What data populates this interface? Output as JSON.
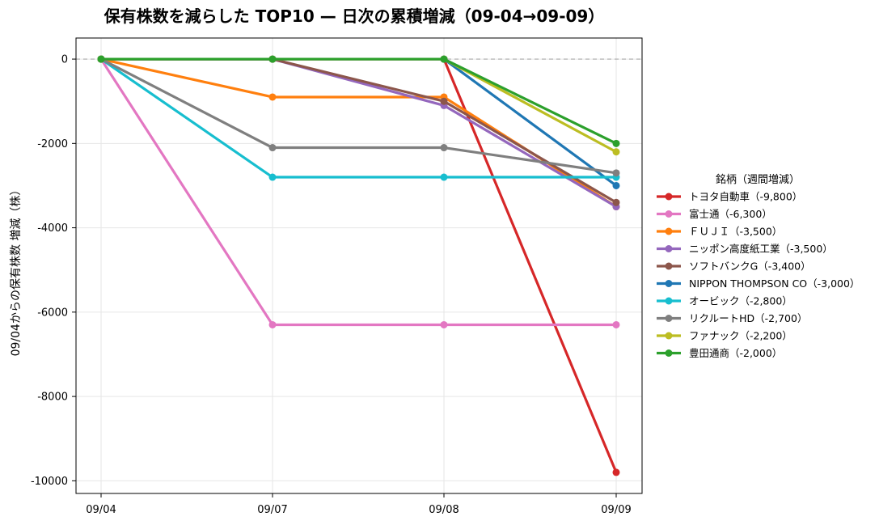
{
  "chart_data": {
    "type": "line",
    "title": "保有株数を減らした TOP10 — 日次の累積増減（09-04→09-09）",
    "xlabel": "",
    "ylabel": "09/04からの保有株数 増減（株）",
    "categories": [
      "09/04",
      "09/07",
      "09/08",
      "09/09"
    ],
    "ylim": [
      -10300,
      500
    ],
    "yticks": [
      0,
      -2000,
      -4000,
      -6000,
      -8000,
      -10000
    ],
    "grid": true,
    "zero_line": true,
    "legend_title": "銘柄（週間増減）",
    "legend_position": "right",
    "series": [
      {
        "name": "トヨタ自動車（-9,800）",
        "color": "#d62728",
        "values": [
          0,
          0,
          0,
          -9800
        ]
      },
      {
        "name": "富士通（-6,300）",
        "color": "#e377c2",
        "values": [
          0,
          -6300,
          -6300,
          -6300
        ]
      },
      {
        "name": "ＦＵＪＩ（-3,500）",
        "color": "#ff7f0e",
        "values": [
          0,
          -900,
          -900,
          -3500
        ]
      },
      {
        "name": "ニッポン高度紙工業（-3,500）",
        "color": "#9467bd",
        "values": [
          0,
          0,
          -1100,
          -3500
        ]
      },
      {
        "name": "ソフトバンクG（-3,400）",
        "color": "#8c564b",
        "values": [
          0,
          0,
          -1000,
          -3400
        ]
      },
      {
        "name": "NIPPON THOMPSON CO（-3,000）",
        "color": "#1f77b4",
        "values": [
          0,
          0,
          0,
          -3000
        ]
      },
      {
        "name": "オービック（-2,800）",
        "color": "#17becf",
        "values": [
          0,
          -2800,
          -2800,
          -2800
        ]
      },
      {
        "name": "リクルートHD（-2,700）",
        "color": "#7f7f7f",
        "values": [
          0,
          -2100,
          -2100,
          -2700
        ]
      },
      {
        "name": "ファナック（-2,200）",
        "color": "#bcbd22",
        "values": [
          0,
          0,
          0,
          -2200
        ]
      },
      {
        "name": "豊田通商（-2,000）",
        "color": "#2ca02c",
        "values": [
          0,
          0,
          0,
          -2000
        ]
      }
    ]
  }
}
